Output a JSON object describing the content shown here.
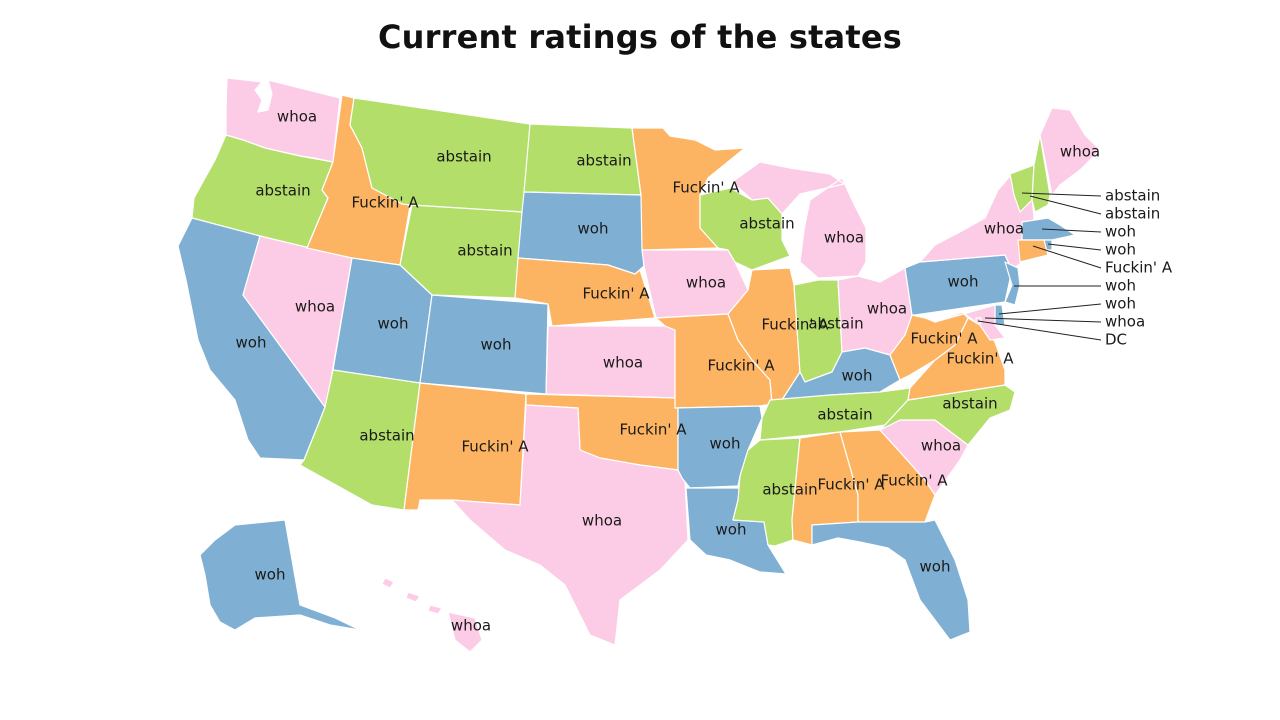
{
  "title": "Current ratings of the states",
  "colors": {
    "woh": "#7fb0d3",
    "whoa": "#fccbe5",
    "abstain": "#b3de69",
    "Fuckin' A": "#fdb462"
  },
  "states": {
    "WA": "whoa",
    "OR": "abstain",
    "CA": "woh",
    "ID": "Fuckin' A",
    "NV": "whoa",
    "MT": "abstain",
    "WY": "abstain",
    "UT": "woh",
    "AZ": "abstain",
    "CO": "woh",
    "NM": "Fuckin' A",
    "ND": "abstain",
    "SD": "woh",
    "NE": "Fuckin' A",
    "KS": "whoa",
    "OK": "Fuckin' A",
    "TX": "whoa",
    "MN": "Fuckin' A",
    "IA": "whoa",
    "MO": "Fuckin' A",
    "AR": "woh",
    "LA": "woh",
    "WI": "abstain",
    "IL": "Fuckin' A",
    "MI": "whoa",
    "IN": "abstain",
    "OH": "whoa",
    "KY": "woh",
    "TN": "abstain",
    "MS": "abstain",
    "AL": "Fuckin' A",
    "GA": "Fuckin' A",
    "FL": "woh",
    "SC": "whoa",
    "NC": "abstain",
    "VA": "Fuckin' A",
    "WV": "Fuckin' A",
    "PA": "woh",
    "NY": "whoa",
    "ME": "whoa",
    "VT": "abstain",
    "NH": "abstain",
    "MA": "woh",
    "RI": "woh",
    "CT": "Fuckin' A",
    "NJ": "woh",
    "DE": "woh",
    "MD": "whoa",
    "DC": "whoa",
    "AK": "woh",
    "HI": "whoa"
  },
  "callouts": [
    {
      "state": "VT",
      "text": "abstain"
    },
    {
      "state": "NH",
      "text": "abstain"
    },
    {
      "state": "MA",
      "text": "woh"
    },
    {
      "state": "RI",
      "text": "woh"
    },
    {
      "state": "CT",
      "text": "Fuckin' A"
    },
    {
      "state": "NJ",
      "text": "woh"
    },
    {
      "state": "DE",
      "text": "woh"
    },
    {
      "state": "MD",
      "text": "whoa"
    },
    {
      "state": "DC",
      "text": "DC"
    }
  ]
}
